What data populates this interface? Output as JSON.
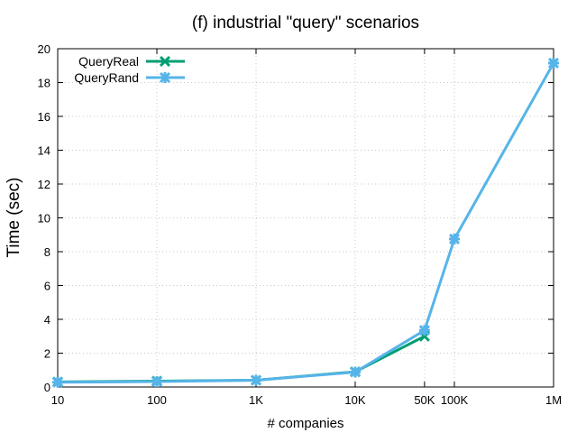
{
  "chart_data": {
    "type": "line",
    "title": "(f) industrial \"query\" scenarios",
    "xlabel": "# companies",
    "ylabel": "Time (sec)",
    "x_scale": "log",
    "x": [
      10,
      100,
      1000,
      10000,
      50000,
      100000,
      1000000
    ],
    "x_tick_labels": [
      "10",
      "100",
      "1K",
      "10K",
      "50K",
      "100K",
      "1M"
    ],
    "ylim": [
      0,
      20
    ],
    "y_ticks": [
      0,
      2,
      4,
      6,
      8,
      10,
      12,
      14,
      16,
      18,
      20
    ],
    "grid": true,
    "legend_position": "top-left",
    "series": [
      {
        "name": "QueryReal",
        "color": "#009e73",
        "marker": "x",
        "x": [
          10,
          100,
          1000,
          10000,
          50000
        ],
        "values": [
          0.3,
          0.35,
          0.4,
          0.9,
          3.0
        ]
      },
      {
        "name": "QueryRand",
        "color": "#56b4e9",
        "marker": "asterisk",
        "x": [
          10,
          100,
          1000,
          10000,
          50000,
          100000,
          1000000
        ],
        "values": [
          0.28,
          0.32,
          0.4,
          0.88,
          3.35,
          8.75,
          19.15
        ]
      }
    ]
  }
}
